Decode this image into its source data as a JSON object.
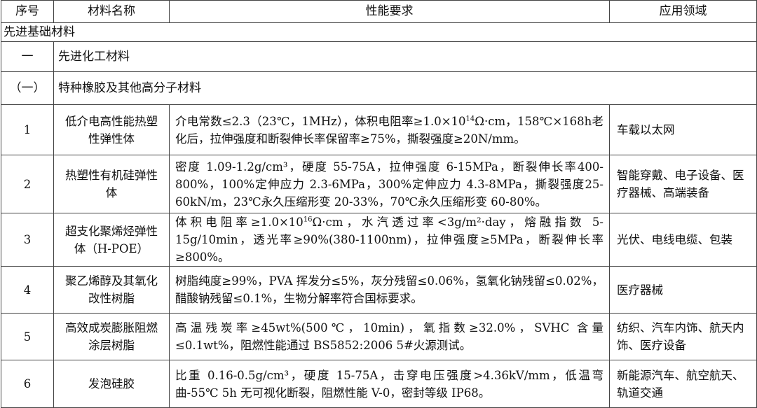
{
  "header": {
    "no": "序号",
    "name": "材料名称",
    "spec": "性能要求",
    "app": "应用领域"
  },
  "section": "先进基础材料",
  "category": {
    "no": "一",
    "title": "先进化工材料"
  },
  "subcategory": {
    "no": "（一）",
    "title": "特种橡胶及其他高分子材料"
  },
  "rows": [
    {
      "no": "1",
      "name": "低介电高性能热塑性弹性体",
      "spec_a": "介电常数≤2.3（23℃，1MHz），体积电阻率≥1.0×10",
      "spec_sup": "14",
      "spec_b": "Ω·cm，158℃×168h老化后，拉伸强度和断裂伸长率保留率≥75%，撕裂强度≥20N/mm。",
      "app": "车载以太网"
    },
    {
      "no": "2",
      "name": "热塑性有机硅弹性体",
      "spec_a": "密度 1.09-1.2g/cm³，硬度 55-75A，拉伸强度 6-15MPa，断裂伸长率400-800%，100%定伸应力 2.3-6MPa，300%定伸应力 4.3-8MPa，撕裂强度25-60kN/m，23℃永久压缩形变 20-33%，70℃永久压缩形变 60-80%。",
      "spec_sup": "",
      "spec_b": "",
      "app": "智能穿戴、电子设备、医疗器械、高端装备"
    },
    {
      "no": "3",
      "name": "超支化聚烯烃弹性体（H-POE）",
      "spec_a": "体积电阻率≥1.0×10",
      "spec_sup": "16",
      "spec_b": "Ω·cm，水汽透过率<3g/m²·day，熔融指数 5-15g/10min，透光率≥90%(380-1100nm)，拉伸强度≥5MPa，断裂伸长率≥800%。",
      "app": "光伏、电线电缆、包装"
    },
    {
      "no": "4",
      "name": "聚乙烯醇及其氧化改性树脂",
      "spec_a": "树脂纯度≥99%，PVA 挥发分≤5%，灰分残留≤0.06%，氢氧化钠残留≤0.02%，醋酸钠残留≤0.1%，生物分解率符合国标要求。",
      "spec_sup": "",
      "spec_b": "",
      "app": "医疗器械"
    },
    {
      "no": "5",
      "name": "高效成炭膨胀阻燃涂层树脂",
      "spec_a": "高温残炭率≥45wt%(500℃，10min)，氧指数≥32.0%，SVHC 含量≤0.1wt%，阻燃性能通过 BS5852:2006 5#火源测试。",
      "spec_sup": "",
      "spec_b": "",
      "app": "纺织、汽车内饰、航天内饰、医疗设备"
    },
    {
      "no": "6",
      "name": "发泡硅胶",
      "spec_a": "比重 0.16-0.5g/cm³，硬度 15-75A，击穿电压强度>4.36kV/mm，低温弯曲-55℃ 5h 无可视化断裂，阻燃性能 V-0，密封等级 IP68。",
      "spec_sup": "",
      "spec_b": "",
      "app": "新能源汽车、航空航天、轨道交通"
    }
  ]
}
